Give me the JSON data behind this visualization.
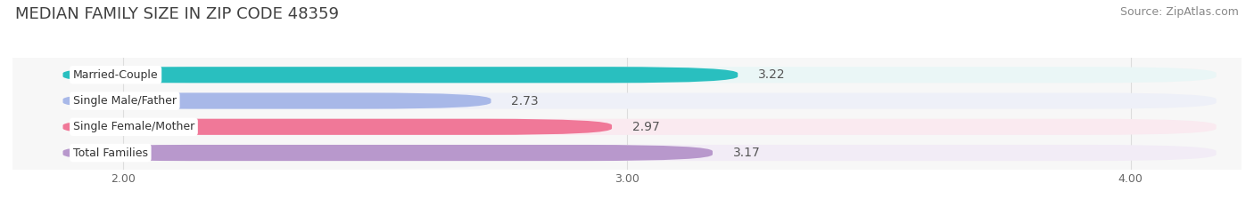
{
  "title": "MEDIAN FAMILY SIZE IN ZIP CODE 48359",
  "source": "Source: ZipAtlas.com",
  "categories": [
    "Married-Couple",
    "Single Male/Father",
    "Single Female/Mother",
    "Total Families"
  ],
  "values": [
    3.22,
    2.73,
    2.97,
    3.17
  ],
  "bar_colors": [
    "#29bfbf",
    "#a8b8e8",
    "#f07898",
    "#b898cc"
  ],
  "bar_bg_colors": [
    "#eaf6f6",
    "#eef0f8",
    "#faeaf0",
    "#f2ecf6"
  ],
  "xlim": [
    1.78,
    4.22
  ],
  "xstart": 1.88,
  "xticks": [
    2.0,
    3.0,
    4.0
  ],
  "xtick_labels": [
    "2.00",
    "3.00",
    "4.00"
  ],
  "title_fontsize": 13,
  "source_fontsize": 9,
  "bar_label_fontsize": 10,
  "category_fontsize": 9,
  "background_color": "#ffffff",
  "plot_bg_color": "#f7f7f7",
  "bar_height": 0.62,
  "bar_gap": 0.38,
  "rounding_size": 0.25
}
